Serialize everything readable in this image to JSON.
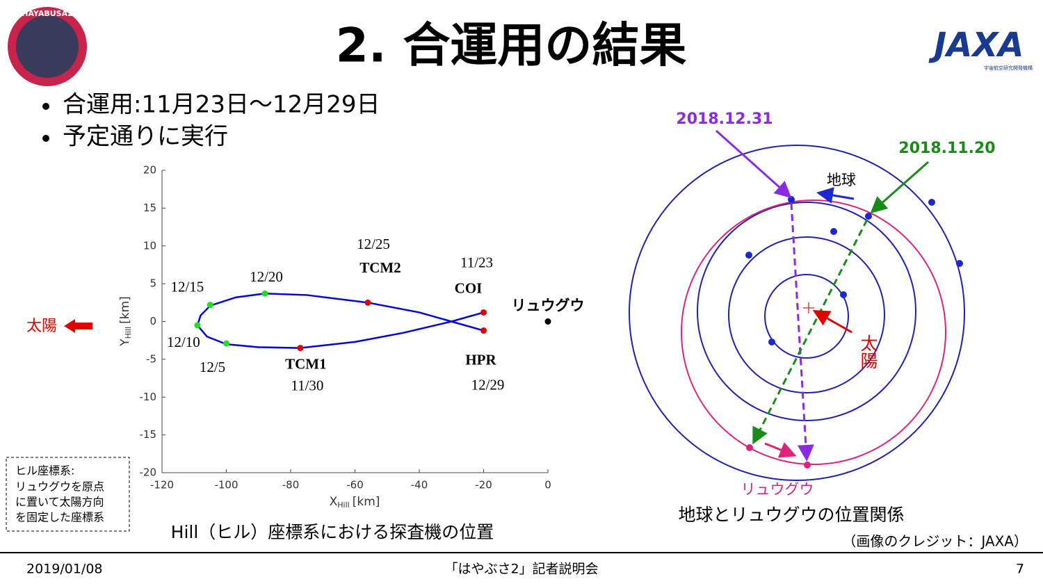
{
  "header": {
    "title": "2. 合運用の結果",
    "logo_left": "HAYABUSA2",
    "logo_right": "JAXA",
    "logo_right_sub": "宇宙航空研究開発機構"
  },
  "bullets": [
    "合運用:11月23日～12月29日",
    "予定通りに実行"
  ],
  "hill_chart": {
    "type": "line",
    "xlabel": {
      "main": "X",
      "sub": "Hill",
      "unit": "[km]"
    },
    "ylabel": {
      "main": "Y",
      "sub": "Hill",
      "unit": "[km]"
    },
    "xlim": [
      -120,
      0
    ],
    "xticks": [
      -120,
      -100,
      -80,
      -60,
      -40,
      -20,
      0
    ],
    "ylim": [
      -20,
      20
    ],
    "yticks": [
      -20,
      -15,
      -10,
      -5,
      0,
      5,
      10,
      15,
      20
    ],
    "trajectory": {
      "color": "#0000e0",
      "x": [
        -20,
        -30,
        -45,
        -60,
        -77,
        -90,
        -100,
        -106,
        -109,
        -108,
        -105,
        -97,
        -88,
        -75,
        -56,
        -40,
        -30,
        -20
      ],
      "y": [
        1.2,
        0,
        -1.5,
        -2.7,
        -3.5,
        -3.4,
        -3,
        -2,
        -0.5,
        0.8,
        2.1,
        3.2,
        3.7,
        3.5,
        2.5,
        1.2,
        0,
        -1.2
      ]
    },
    "points": [
      {
        "date": "11/23",
        "event": "COI",
        "x": -20,
        "y": 1.2,
        "color": "#e00000"
      },
      {
        "date": "11/30",
        "event": "TCM1",
        "x": -77,
        "y": -3.5,
        "color": "#e00000"
      },
      {
        "date": "12/5",
        "x": -100,
        "y": -2.9,
        "color": "#22dd22"
      },
      {
        "date": "12/10",
        "x": -109,
        "y": -0.5,
        "color": "#22dd22"
      },
      {
        "date": "12/15",
        "x": -105,
        "y": 2.2,
        "color": "#22dd22"
      },
      {
        "date": "12/20",
        "x": -88,
        "y": 3.7,
        "color": "#22dd22"
      },
      {
        "date": "12/25",
        "event": "TCM2",
        "x": -56,
        "y": 2.5,
        "color": "#e00000"
      },
      {
        "date": "12/29",
        "event": "HPR",
        "x": -20,
        "y": -1.2,
        "color": "#e00000"
      }
    ],
    "target": {
      "label": "リュウグウ",
      "x": 0,
      "y": 0,
      "color": "#000000"
    },
    "sun_label": "太陽",
    "caption": "Hill（ヒル）座標系における探査機の位置"
  },
  "note": [
    "ヒル座標系:",
    "リュウグウを原点",
    "に置いて太陽方向",
    "を固定した座標系"
  ],
  "orbit_diagram": {
    "date_ryugu": "2018.12.31",
    "date_earth": "2018.11.20",
    "earth_label": "地球",
    "sun_label": "太陽",
    "ryugu_label": "リュウグウ",
    "caption": "地球とリュウグウの位置関係",
    "credit": "（画像のクレジット：JAXA）"
  },
  "footer": {
    "date": "2019/01/08",
    "event": "「はやぶさ2」記者説明会",
    "page": "7"
  }
}
